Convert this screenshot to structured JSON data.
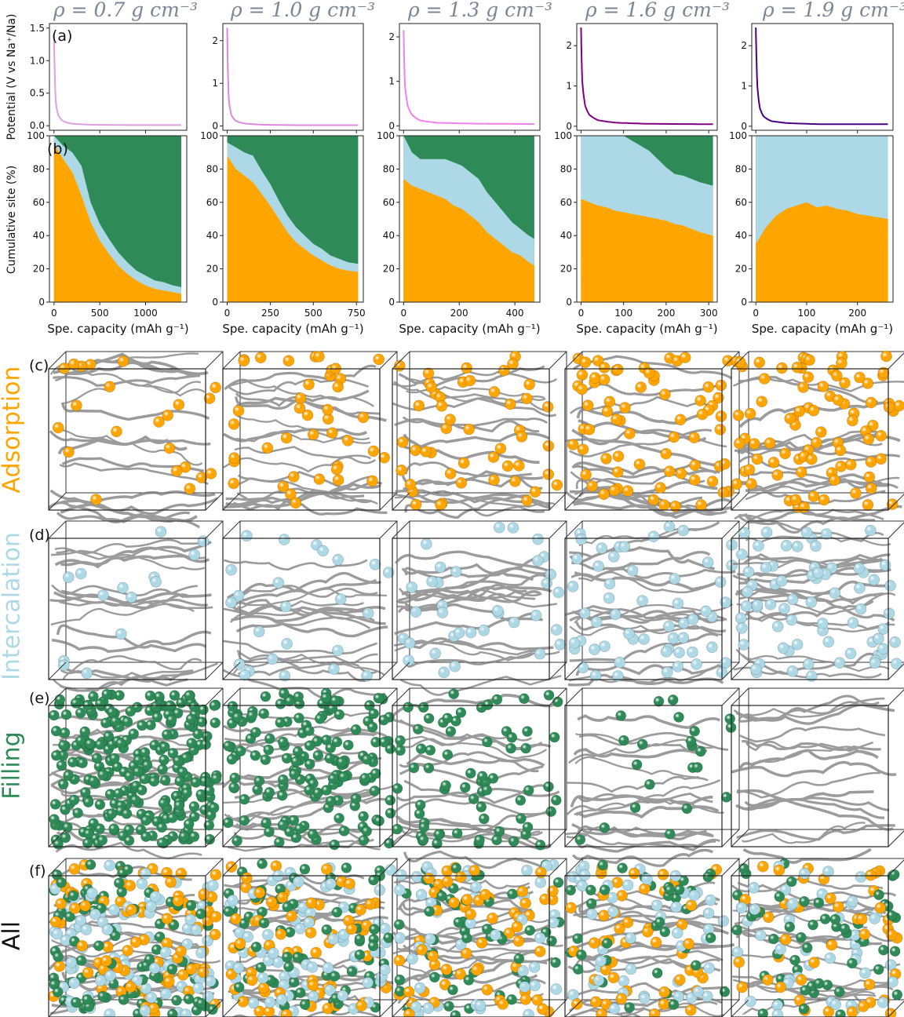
{
  "colors": {
    "adsorption": "#ffa500",
    "intercalation": "#add8e6",
    "filling": "#2e8b57",
    "title_grey": "#7b8794",
    "potential_lines": [
      "#dda0dd",
      "#dd88dd",
      "#ee82ee",
      "#800080",
      "#4b0082"
    ]
  },
  "column_titles": [
    "ρ = 0.7 g cm⁻³",
    "ρ = 1.0 g cm⁻³",
    "ρ = 1.3 g cm⁻³",
    "ρ = 1.6 g cm⁻³",
    "ρ = 1.9 g cm⁻³"
  ],
  "panel_labels": {
    "a": "(a)",
    "b": "(b)",
    "c": "(c)",
    "d": "(d)",
    "e": "(e)",
    "f": "(f)"
  },
  "row_labels": {
    "adsorption": "Adsorption",
    "intercalation": "Intercalation",
    "filling": "Filling",
    "all": "All"
  },
  "chart_data": [
    {
      "type": "line",
      "panel": "(a)",
      "ylabel": "Potential (V vs Na⁺/Na)",
      "xlabel": "",
      "series": [
        {
          "name": "0.7 g cm-3",
          "xlim": [
            -50,
            1450
          ],
          "ylim": [
            -0.07,
            1.57
          ],
          "yticks": [
            0.0,
            0.5,
            1.0,
            1.5
          ],
          "ytick_labels": [
            "0.0",
            "0.5",
            "1.0",
            "1.5"
          ],
          "x": [
            0,
            20,
            50,
            100,
            200,
            400,
            800,
            1390
          ],
          "y": [
            1.4,
            0.35,
            0.15,
            0.07,
            0.03,
            0.015,
            0.01,
            0.01
          ]
        },
        {
          "name": "1.0 g cm-3",
          "xlim": [
            -25,
            790
          ],
          "ylim": [
            -0.1,
            2.4
          ],
          "yticks": [
            0,
            1,
            2
          ],
          "ytick_labels": [
            "0",
            "1",
            "2"
          ],
          "x": [
            0,
            10,
            25,
            50,
            100,
            200,
            400,
            760
          ],
          "y": [
            2.3,
            0.6,
            0.25,
            0.12,
            0.06,
            0.03,
            0.02,
            0.02
          ]
        },
        {
          "name": "1.3 g cm-3",
          "xlim": [
            -15,
            490
          ],
          "ylim": [
            -0.1,
            2.3
          ],
          "yticks": [
            0,
            1,
            2
          ],
          "ytick_labels": [
            "0",
            "1",
            "2"
          ],
          "x": [
            0,
            5,
            15,
            30,
            60,
            120,
            250,
            470
          ],
          "y": [
            2.15,
            0.9,
            0.45,
            0.25,
            0.12,
            0.07,
            0.05,
            0.04
          ]
        },
        {
          "name": "1.6 g cm-3",
          "xlim": [
            -10,
            320
          ],
          "ylim": [
            -0.1,
            2.55
          ],
          "yticks": [
            0,
            1,
            2
          ],
          "ytick_labels": [
            "0",
            "1",
            "2"
          ],
          "x": [
            0,
            3,
            10,
            20,
            40,
            80,
            160,
            310
          ],
          "y": [
            2.45,
            1.1,
            0.5,
            0.28,
            0.15,
            0.09,
            0.06,
            0.05
          ]
        },
        {
          "name": "1.9 g cm-3",
          "xlim": [
            -8,
            270
          ],
          "ylim": [
            -0.1,
            2.55
          ],
          "yticks": [
            0,
            1,
            2
          ],
          "ytick_labels": [
            "0",
            "1",
            "2"
          ],
          "x": [
            0,
            3,
            8,
            15,
            30,
            60,
            130,
            260
          ],
          "y": [
            2.45,
            1.0,
            0.45,
            0.25,
            0.13,
            0.08,
            0.05,
            0.05
          ]
        }
      ]
    },
    {
      "type": "area",
      "panel": "(b)",
      "stacked": true,
      "ylabel": "Cumulative site (%)",
      "xlabel": "Spe. capacity (mAh g⁻¹)",
      "series_names": [
        "Adsorption",
        "Intercalation",
        "Filling"
      ],
      "panels": [
        {
          "name": "0.7 g cm-3",
          "xlim": [
            -50,
            1450
          ],
          "ylim": [
            0,
            100
          ],
          "yticks": [
            0,
            20,
            40,
            60,
            80,
            100
          ],
          "xticks": [
            0,
            500,
            1000
          ],
          "xtick_labels": [
            "0",
            "500",
            "1000"
          ],
          "x": [
            0,
            100,
            200,
            300,
            400,
            500,
            600,
            700,
            800,
            900,
            1000,
            1100,
            1200,
            1300,
            1390
          ],
          "adsorption": [
            95,
            86,
            78,
            64,
            48,
            37,
            29,
            22,
            17,
            13,
            10,
            8,
            7,
            6,
            5
          ],
          "intercalation": [
            5,
            8,
            12,
            18,
            12,
            10,
            9,
            8,
            7,
            6,
            6,
            5,
            5,
            4,
            4
          ]
        },
        {
          "name": "1.0 g cm-3",
          "xlim": [
            -25,
            790
          ],
          "ylim": [
            0,
            100
          ],
          "yticks": [
            0,
            20,
            40,
            60,
            80,
            100
          ],
          "xticks": [
            0,
            250,
            500,
            750
          ],
          "xtick_labels": [
            "0",
            "250",
            "500",
            "750"
          ],
          "x": [
            0,
            50,
            100,
            150,
            200,
            250,
            300,
            350,
            400,
            450,
            500,
            550,
            600,
            650,
            700,
            760
          ],
          "adsorption": [
            88,
            80,
            76,
            72,
            65,
            58,
            50,
            42,
            36,
            32,
            28,
            25,
            22,
            20,
            19,
            18
          ],
          "intercalation": [
            8,
            13,
            14,
            16,
            14,
            13,
            11,
            10,
            9,
            8,
            7,
            7,
            6,
            6,
            5,
            5
          ]
        },
        {
          "name": "1.3 g cm-3",
          "xlim": [
            -15,
            490
          ],
          "ylim": [
            0,
            100
          ],
          "yticks": [
            0,
            20,
            40,
            60,
            80,
            100
          ],
          "xticks": [
            0,
            200,
            400
          ],
          "xtick_labels": [
            "0",
            "200",
            "400"
          ],
          "x": [
            0,
            30,
            60,
            90,
            120,
            150,
            180,
            210,
            240,
            270,
            300,
            330,
            360,
            390,
            420,
            450,
            470
          ],
          "adsorption": [
            74,
            70,
            68,
            66,
            64,
            62,
            58,
            56,
            52,
            48,
            42,
            38,
            34,
            30,
            28,
            24,
            22
          ],
          "intercalation": [
            26,
            20,
            18,
            20,
            22,
            24,
            26,
            26,
            26,
            26,
            24,
            22,
            20,
            18,
            16,
            16,
            16
          ]
        },
        {
          "name": "1.6 g cm-3",
          "xlim": [
            -10,
            320
          ],
          "ylim": [
            0,
            100
          ],
          "yticks": [
            0,
            20,
            40,
            60,
            80,
            100
          ],
          "xticks": [
            0,
            100,
            200,
            300
          ],
          "xtick_labels": [
            "0",
            "100",
            "200",
            "300"
          ],
          "x": [
            0,
            20,
            40,
            60,
            80,
            100,
            120,
            140,
            160,
            180,
            200,
            220,
            240,
            260,
            280,
            310
          ],
          "adsorption": [
            62,
            60,
            58,
            57,
            55,
            54,
            53,
            52,
            51,
            50,
            49,
            47,
            46,
            44,
            42,
            40
          ],
          "intercalation": [
            38,
            40,
            42,
            43,
            45,
            46,
            44,
            42,
            40,
            36,
            32,
            30,
            30,
            30,
            30,
            30
          ]
        },
        {
          "name": "1.9 g cm-3",
          "xlim": [
            -8,
            270
          ],
          "ylim": [
            0,
            100
          ],
          "yticks": [
            0,
            20,
            40,
            60,
            80,
            100
          ],
          "xticks": [
            0,
            100,
            200
          ],
          "xtick_labels": [
            "0",
            "100",
            "200"
          ],
          "x": [
            0,
            10,
            20,
            40,
            60,
            80,
            100,
            120,
            140,
            160,
            180,
            200,
            220,
            240,
            260
          ],
          "adsorption": [
            35,
            40,
            45,
            52,
            56,
            58,
            60,
            57,
            58,
            56,
            55,
            53,
            52,
            51,
            50
          ],
          "intercalation": [
            65,
            60,
            55,
            48,
            44,
            42,
            40,
            43,
            42,
            44,
            45,
            47,
            48,
            49,
            50
          ]
        }
      ]
    }
  ],
  "structure_rows": [
    {
      "key": "adsorption",
      "atoms": [
        "adsorption"
      ],
      "counts": [
        22,
        40,
        48,
        70,
        85
      ]
    },
    {
      "key": "intercalation",
      "atoms": [
        "intercalation"
      ],
      "counts": [
        14,
        24,
        34,
        55,
        70
      ]
    },
    {
      "key": "filling",
      "atoms": [
        "filling"
      ],
      "counts": [
        260,
        150,
        70,
        22,
        0
      ]
    },
    {
      "key": "all",
      "atoms": [
        "filling",
        "intercalation",
        "adsorption"
      ],
      "counts": [
        270,
        210,
        160,
        130,
        140
      ]
    }
  ]
}
